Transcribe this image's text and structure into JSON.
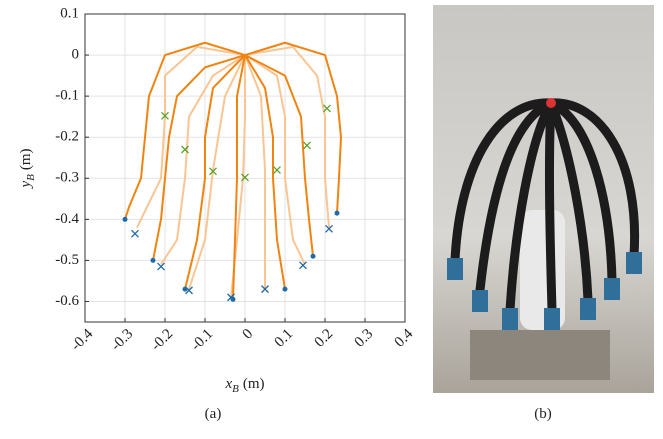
{
  "chart_data": {
    "type": "line",
    "xlabel": {
      "symbol": "x",
      "subscript": "B",
      "unit": "(m)"
    },
    "ylabel": {
      "symbol": "y",
      "subscript": "B",
      "unit": "(m)"
    },
    "xlim": [
      -0.4,
      0.4
    ],
    "ylim": [
      -0.65,
      0.1
    ],
    "xticks": [
      -0.4,
      -0.3,
      -0.2,
      -0.1,
      0,
      0.1,
      0.2,
      0.3,
      0.4
    ],
    "yticks": [
      -0.6,
      -0.5,
      -0.4,
      -0.3,
      -0.2,
      -0.1,
      0,
      0.1
    ],
    "grid": true,
    "series": [
      {
        "mode": "line",
        "color": "#f9c593",
        "x": [
          0,
          -0.12,
          -0.2,
          -0.2,
          -0.21,
          -0.27
        ],
        "values": [
          0,
          0.02,
          -0.05,
          -0.15,
          -0.3,
          -0.42
        ]
      },
      {
        "mode": "line",
        "color": "#f9c593",
        "x": [
          0,
          -0.08,
          -0.14,
          -0.15,
          -0.17,
          -0.21
        ],
        "values": [
          0,
          -0.05,
          -0.15,
          -0.3,
          -0.45,
          -0.51
        ]
      },
      {
        "mode": "line",
        "color": "#f9c593",
        "x": [
          0,
          -0.05,
          -0.08,
          -0.1,
          -0.14
        ],
        "values": [
          0,
          -0.1,
          -0.28,
          -0.45,
          -0.57
        ]
      },
      {
        "mode": "line",
        "color": "#f9c593",
        "x": [
          0,
          0,
          -0.005,
          -0.02,
          -0.035
        ],
        "values": [
          0,
          -0.15,
          -0.3,
          -0.45,
          -0.59
        ]
      },
      {
        "mode": "line",
        "color": "#f9c593",
        "x": [
          0,
          0.04,
          0.05,
          0.05,
          0.05
        ],
        "values": [
          0,
          -0.1,
          -0.28,
          -0.45,
          -0.57
        ]
      },
      {
        "mode": "line",
        "color": "#f9c593",
        "x": [
          0,
          0.08,
          0.1,
          0.1,
          0.12,
          0.15
        ],
        "values": [
          0,
          -0.05,
          -0.15,
          -0.3,
          -0.45,
          -0.51
        ]
      },
      {
        "mode": "line",
        "color": "#f9c593",
        "x": [
          0,
          0.12,
          0.18,
          0.2,
          0.2,
          0.21
        ],
        "values": [
          0,
          0.02,
          -0.05,
          -0.15,
          -0.3,
          -0.42
        ]
      },
      {
        "mode": "line",
        "color": "#f08410",
        "x": [
          0,
          -0.1,
          -0.2,
          -0.24,
          -0.25,
          -0.26,
          -0.29,
          -0.3
        ],
        "values": [
          0,
          0.03,
          0,
          -0.1,
          -0.2,
          -0.3,
          -0.37,
          -0.4
        ]
      },
      {
        "mode": "line",
        "color": "#f08410",
        "x": [
          0,
          -0.1,
          -0.17,
          -0.19,
          -0.2,
          -0.21,
          -0.23
        ],
        "values": [
          0,
          -0.03,
          -0.1,
          -0.2,
          -0.3,
          -0.4,
          -0.5
        ]
      },
      {
        "mode": "line",
        "color": "#f08410",
        "x": [
          0,
          -0.08,
          -0.1,
          -0.1,
          -0.12,
          -0.15
        ],
        "values": [
          0,
          -0.08,
          -0.2,
          -0.3,
          -0.45,
          -0.57
        ]
      },
      {
        "mode": "line",
        "color": "#f08410",
        "x": [
          0,
          -0.02,
          -0.02,
          -0.025,
          -0.03
        ],
        "values": [
          0,
          -0.1,
          -0.3,
          -0.45,
          -0.595
        ]
      },
      {
        "mode": "line",
        "color": "#f08410",
        "x": [
          0,
          0.05,
          0.07,
          0.07,
          0.08,
          0.1
        ],
        "values": [
          0,
          -0.08,
          -0.2,
          -0.3,
          -0.45,
          -0.57
        ]
      },
      {
        "mode": "line",
        "color": "#f08410",
        "x": [
          0,
          0.1,
          0.14,
          0.15,
          0.16,
          0.17
        ],
        "values": [
          0,
          -0.05,
          -0.15,
          -0.3,
          -0.4,
          -0.49
        ]
      },
      {
        "mode": "line",
        "color": "#f08410",
        "x": [
          0,
          0.1,
          0.2,
          0.23,
          0.24,
          0.235,
          0.23
        ],
        "values": [
          0,
          0.03,
          0,
          -0.1,
          -0.2,
          -0.3,
          -0.385
        ]
      },
      {
        "mode": "dot",
        "color": "#1f6aa8",
        "x": [
          -0.3,
          -0.23,
          -0.15,
          -0.03,
          0.1,
          0.17,
          0.23
        ],
        "values": [
          -0.4,
          -0.5,
          -0.57,
          -0.595,
          -0.57,
          -0.49,
          -0.385
        ]
      },
      {
        "mode": "cross",
        "color": "#1f6aa8",
        "x": [
          -0.275,
          -0.21,
          -0.14,
          -0.035,
          0.05,
          0.145,
          0.21
        ],
        "values": [
          -0.435,
          -0.515,
          -0.573,
          -0.59,
          -0.57,
          -0.512,
          -0.423
        ]
      },
      {
        "mode": "cross",
        "color": "#5aa02c",
        "x": [
          -0.2,
          -0.15,
          -0.08,
          0,
          0.08,
          0.155,
          0.205
        ],
        "values": [
          -0.148,
          -0.23,
          -0.283,
          -0.298,
          -0.28,
          -0.22,
          -0.13
        ]
      }
    ]
  },
  "captions": [
    "(a)",
    "(b)"
  ]
}
